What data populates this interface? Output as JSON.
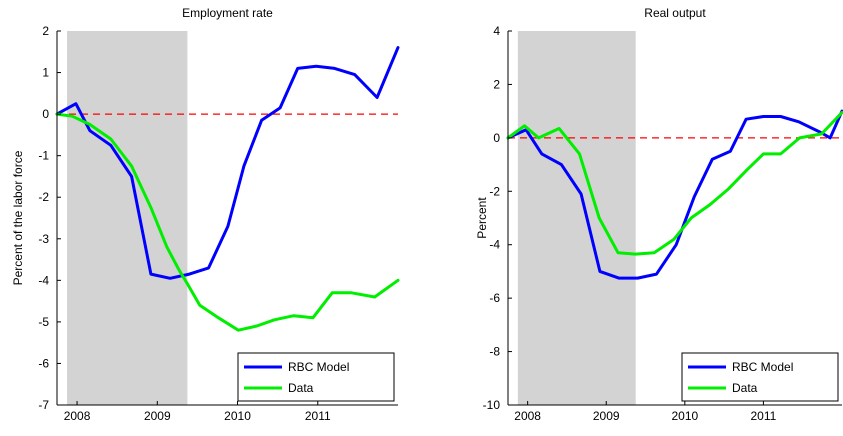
{
  "chart_data": [
    {
      "type": "line",
      "title": "Employment rate",
      "xlabel": "",
      "ylabel": "Percent of the labor force",
      "xlim": [
        2007.75,
        2012.0
      ],
      "ylim": [
        -7,
        2
      ],
      "xticks": [
        2008,
        2009,
        2010,
        2011
      ],
      "yticks": [
        -7,
        -6,
        -5,
        -4,
        -3,
        -2,
        -1,
        0,
        1,
        2
      ],
      "shaded_region": [
        2007.875,
        2009.375
      ],
      "reference_line": 0,
      "legend_position": "bottom-right",
      "series": [
        {
          "name": "RBC Model",
          "color": "#0000ff",
          "x": [
            2007.75,
            2007.985,
            2008.16,
            2008.42,
            2008.68,
            2008.92,
            2009.16,
            2009.4,
            2009.64,
            2009.88,
            2010.08,
            2010.3,
            2010.53,
            2010.75,
            2010.98,
            2011.21,
            2011.46,
            2011.74,
            2012.0
          ],
          "y": [
            0.0,
            0.25,
            -0.4,
            -0.75,
            -1.5,
            -3.85,
            -3.95,
            -3.85,
            -3.7,
            -2.7,
            -1.25,
            -0.15,
            0.15,
            1.1,
            1.15,
            1.1,
            0.95,
            0.4,
            1.6
          ]
        },
        {
          "name": "Data",
          "color": "#00ee00",
          "x": [
            2007.75,
            2007.94,
            2008.16,
            2008.42,
            2008.68,
            2008.92,
            2009.12,
            2009.27,
            2009.38,
            2009.53,
            2009.76,
            2010.01,
            2010.24,
            2010.46,
            2010.7,
            2010.94,
            2011.18,
            2011.42,
            2011.71,
            2012.0
          ],
          "y": [
            0.0,
            -0.05,
            -0.25,
            -0.6,
            -1.25,
            -2.25,
            -3.2,
            -3.75,
            -4.1,
            -4.6,
            -4.9,
            -5.2,
            -5.1,
            -4.95,
            -4.85,
            -4.9,
            -4.3,
            -4.3,
            -4.4,
            -4.0
          ]
        }
      ]
    },
    {
      "type": "line",
      "title": "Real output",
      "xlabel": "",
      "ylabel": "Percent",
      "xlim": [
        2007.75,
        2012.0
      ],
      "ylim": [
        -10,
        4
      ],
      "xticks": [
        2008,
        2009,
        2010,
        2011
      ],
      "yticks": [
        -10,
        -8,
        -6,
        -4,
        -2,
        0,
        2,
        4
      ],
      "shaded_region": [
        2007.875,
        2009.375
      ],
      "reference_line": 0,
      "legend_position": "bottom-right",
      "series": [
        {
          "name": "RBC Model",
          "color": "#0000ff",
          "x": [
            2007.75,
            2007.98,
            2008.18,
            2008.43,
            2008.68,
            2008.92,
            2009.16,
            2009.4,
            2009.64,
            2009.89,
            2010.12,
            2010.35,
            2010.58,
            2010.78,
            2011.0,
            2011.22,
            2011.45,
            2011.73,
            2011.85,
            2012.0
          ],
          "y": [
            0.0,
            0.3,
            -0.6,
            -1.0,
            -2.1,
            -5.0,
            -5.25,
            -5.25,
            -5.1,
            -4.0,
            -2.2,
            -0.8,
            -0.5,
            0.7,
            0.8,
            0.8,
            0.6,
            0.2,
            0.0,
            1.0
          ]
        },
        {
          "name": "Data",
          "color": "#00ee00",
          "x": [
            2007.75,
            2007.96,
            2008.14,
            2008.4,
            2008.66,
            2008.91,
            2009.15,
            2009.37,
            2009.61,
            2009.86,
            2010.08,
            2010.32,
            2010.56,
            2010.79,
            2011.0,
            2011.22,
            2011.46,
            2011.74,
            2012.0
          ],
          "y": [
            0.0,
            0.45,
            0.0,
            0.35,
            -0.6,
            -3.0,
            -4.3,
            -4.35,
            -4.3,
            -3.8,
            -3.0,
            -2.5,
            -1.9,
            -1.2,
            -0.6,
            -0.6,
            0.0,
            0.15,
            0.95
          ]
        }
      ]
    }
  ]
}
